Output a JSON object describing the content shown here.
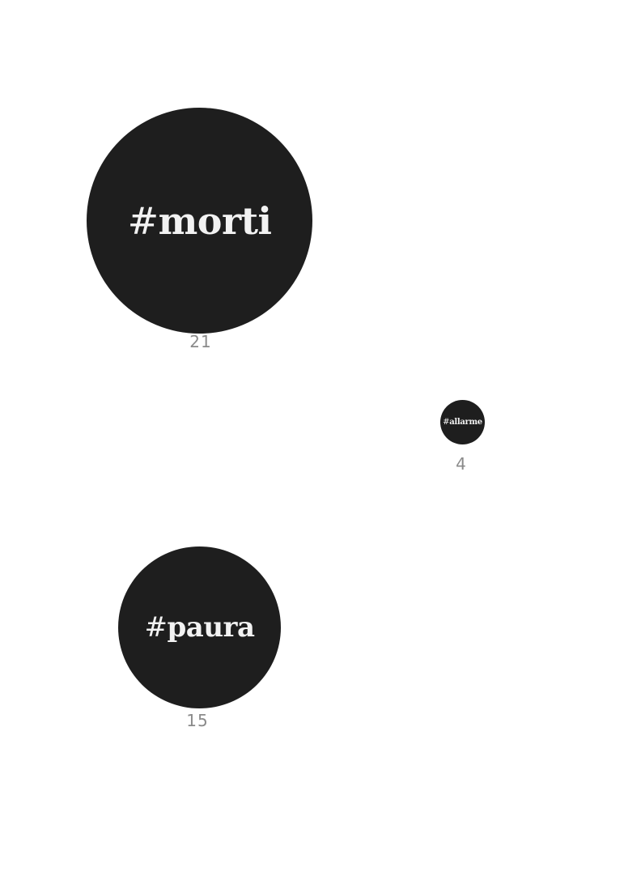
{
  "bubble_color": "#1e1e1e",
  "text_color": "#f2f2f2",
  "count_color": "#8a8a8a",
  "bubbles": [
    {
      "hash": "#",
      "word": "morti",
      "count": "21"
    },
    {
      "hash": "#",
      "word": "allarme",
      "count": "4"
    },
    {
      "hash": "#",
      "word": "paura",
      "count": "15"
    }
  ]
}
